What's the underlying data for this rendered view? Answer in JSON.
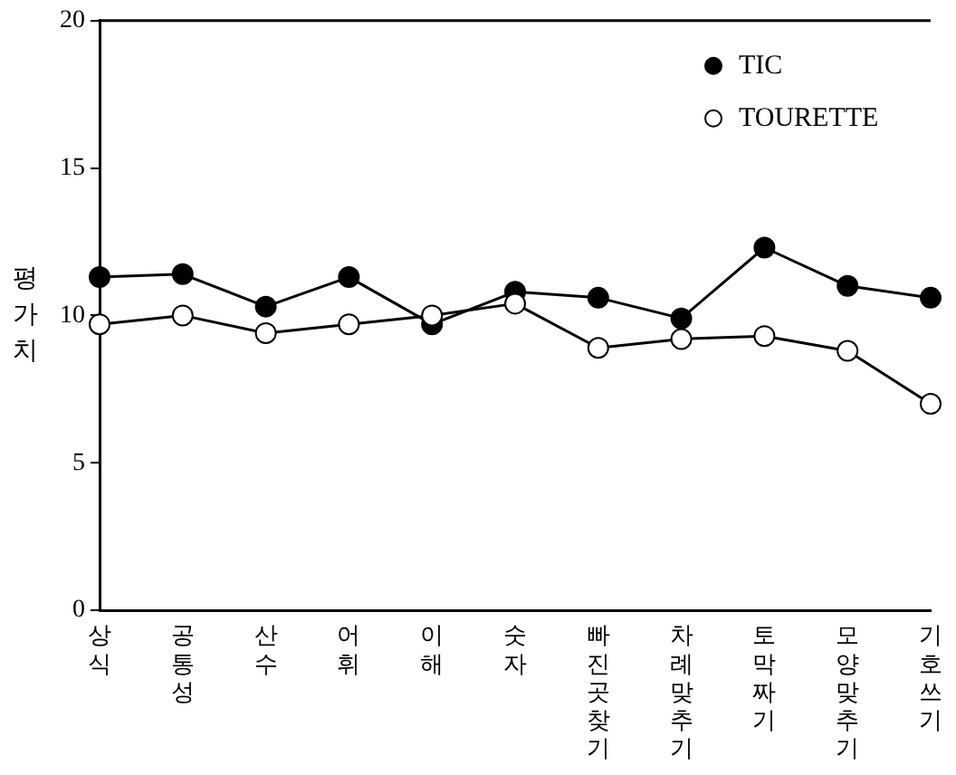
{
  "chart_data": {
    "type": "line",
    "ylabel": "평가치",
    "categories": [
      "상식",
      "공통성",
      "산수",
      "어휘",
      "이해",
      "숫자",
      "빠진곳찾기",
      "차례맞추기",
      "토막짜기",
      "모양맞추기",
      "기호쓰기"
    ],
    "series": [
      {
        "name": "TIC",
        "color": "#000000",
        "marker": "circle",
        "values": [
          11.3,
          11.4,
          10.3,
          11.3,
          9.7,
          10.8,
          10.6,
          9.9,
          12.3,
          11.0,
          10.6
        ]
      },
      {
        "name": "TOURETTE",
        "color": "#ffffff",
        "marker": "circle",
        "values": [
          9.7,
          10.0,
          9.4,
          9.7,
          10.0,
          10.4,
          8.9,
          9.2,
          9.3,
          8.8,
          7.0
        ]
      }
    ],
    "ylim": [
      0,
      20
    ],
    "yticks": [
      0,
      5,
      10,
      15,
      20
    ],
    "grid": false,
    "legend": "top right",
    "line_style": "solid"
  }
}
